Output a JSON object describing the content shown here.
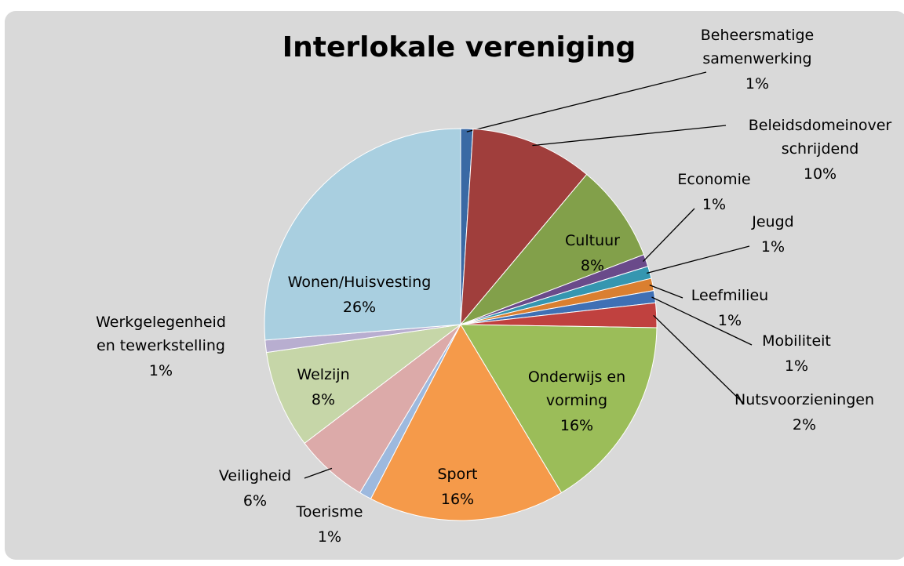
{
  "chart_data": {
    "type": "pie",
    "title": "Interlokale vereniging",
    "categories": [
      "Beheersmatige\nsamenwerking",
      "Beleidsdomeinover\nschrijdend",
      "Cultuur",
      "Economie",
      "Jeugd",
      "Leefmilieu",
      "Mobiliteit",
      "Nutsvoorzieningen",
      "Onderwijs en\nvorming",
      "Sport",
      "Toerisme",
      "Veiligheid",
      "Welzijn",
      "Werkgelegenheid\nen tewerkstelling",
      "Wonen/Huisvesting"
    ],
    "values": [
      1,
      10,
      8,
      1,
      1,
      1,
      1,
      2,
      16,
      16,
      1,
      6,
      8,
      1,
      26
    ],
    "value_labels": [
      "1%",
      "10%",
      "8%",
      "1%",
      "1%",
      "1%",
      "1%",
      "2%",
      "16%",
      "16%",
      "1%",
      "6%",
      "8%",
      "1%",
      "26%"
    ],
    "colors": [
      "#3a69a4",
      "#a03e3c",
      "#82a04a",
      "#6a4a8a",
      "#3596b0",
      "#da7f30",
      "#3f70b5",
      "#c0413f",
      "#9bbd59",
      "#f59a4a",
      "#9db9de",
      "#dcaaa9",
      "#c6d6a8",
      "#b8aed0",
      "#a9cfe0"
    ]
  }
}
